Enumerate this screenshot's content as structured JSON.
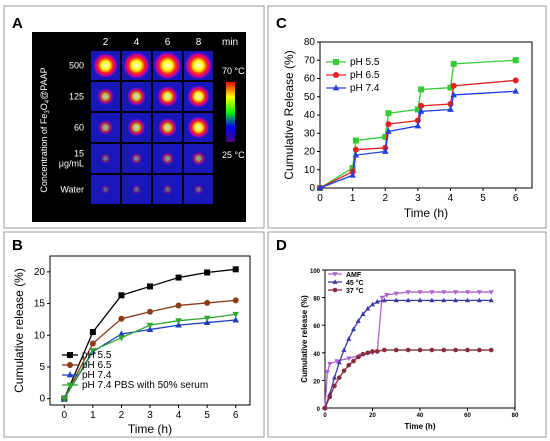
{
  "panels": {
    "A": {
      "label": "A",
      "time_labels": [
        "2",
        "4",
        "6",
        "8"
      ],
      "time_unit": "min",
      "row_labels": [
        "500",
        "125",
        "60",
        "15\nμg/mL",
        "Water"
      ],
      "ylabel": "Concentration of Fe3O4@PAAP",
      "ylabel_main": "Concentration of Fe",
      "ylabel_sub1": "3",
      "ylabel_mid": "O",
      "ylabel_sub2": "4",
      "ylabel_end": "@PAAP",
      "scale_max": "70 °C",
      "scale_min": "25 °C",
      "intensity": [
        [
          0.85,
          0.95,
          1.0,
          1.0
        ],
        [
          0.45,
          0.55,
          0.65,
          0.72
        ],
        [
          0.35,
          0.5,
          0.55,
          0.7
        ],
        [
          0.12,
          0.18,
          0.25,
          0.3
        ],
        [
          0.05,
          0.08,
          0.1,
          0.1
        ]
      ]
    }
  },
  "chart_data": [
    {
      "id": "B",
      "label": "B",
      "type": "line",
      "xlabel": "Time (h)",
      "ylabel": "Cumulative release (%)",
      "xlim": [
        -0.5,
        6.5
      ],
      "ylim": [
        -1,
        22.5
      ],
      "xticks": [
        0,
        1,
        2,
        3,
        4,
        5,
        6
      ],
      "yticks": [
        0,
        5,
        10,
        15,
        20
      ],
      "legend_position": "bottom-left",
      "series": [
        {
          "name": "pH 5.5",
          "color": "#000000",
          "marker": "square",
          "x": [
            0,
            1,
            2,
            3,
            4,
            5,
            6
          ],
          "y": [
            0,
            10.5,
            16.3,
            17.7,
            19.1,
            19.9,
            20.4
          ]
        },
        {
          "name": "pH 6.5",
          "color": "#8b3a1a",
          "marker": "circle",
          "x": [
            0,
            1,
            2,
            3,
            4,
            5,
            6
          ],
          "y": [
            0,
            8.7,
            12.6,
            13.7,
            14.7,
            15.1,
            15.5
          ]
        },
        {
          "name": "pH 7.4",
          "color": "#1f3fbf",
          "marker": "triangle-up",
          "x": [
            0,
            1,
            2,
            3,
            4,
            5,
            6
          ],
          "y": [
            0,
            7.4,
            10.2,
            10.9,
            11.6,
            12.0,
            12.4
          ]
        },
        {
          "name": "pH 7.4 PBS with 50% serum",
          "color": "#2ea82e",
          "marker": "triangle-down",
          "x": [
            0,
            1,
            2,
            3,
            4,
            5,
            6
          ],
          "y": [
            0,
            7.6,
            9.6,
            11.6,
            12.3,
            12.7,
            13.3
          ]
        }
      ]
    },
    {
      "id": "C",
      "label": "C",
      "type": "line",
      "xlabel": "Time (h)",
      "ylabel": "Cumulative Release (%)",
      "xlim": [
        0,
        6.5
      ],
      "ylim": [
        0,
        80
      ],
      "xticks": [
        0,
        1,
        2,
        3,
        4,
        5,
        6
      ],
      "yticks": [
        0,
        10,
        20,
        30,
        40,
        50,
        60,
        70,
        80
      ],
      "legend_position": "top-left",
      "series": [
        {
          "name": "pH 5.5",
          "color": "#33cc33",
          "marker": "square",
          "x": [
            0,
            1,
            1.1,
            2,
            2.1,
            3,
            3.1,
            4,
            4.1,
            6
          ],
          "y": [
            0,
            11,
            26,
            28,
            41,
            43,
            54,
            55,
            68,
            70
          ]
        },
        {
          "name": "pH 6.5",
          "color": "#e62020",
          "marker": "circle",
          "x": [
            0,
            1,
            1.1,
            2,
            2.1,
            3,
            3.1,
            4,
            4.1,
            6
          ],
          "y": [
            0,
            9,
            21,
            22,
            35,
            37,
            45,
            46,
            56,
            59
          ]
        },
        {
          "name": "pH 7.4",
          "color": "#2040e0",
          "marker": "triangle-up",
          "x": [
            0,
            1,
            1.1,
            2,
            2.1,
            3,
            3.1,
            4,
            4.1,
            6
          ],
          "y": [
            0,
            7,
            18,
            20,
            31,
            34,
            42,
            43,
            51,
            53
          ]
        }
      ]
    },
    {
      "id": "D",
      "label": "D",
      "type": "line",
      "xlabel": "Time (h)",
      "ylabel": "Cumulative release (%)",
      "xlim": [
        0,
        80
      ],
      "ylim": [
        0,
        100
      ],
      "xticks": [
        0,
        20,
        40,
        60,
        80
      ],
      "yticks": [
        0,
        20,
        40,
        60,
        80,
        100
      ],
      "legend_position": "top-left",
      "series": [
        {
          "name": "AMF",
          "color": "#b060d0",
          "marker": "triangle-down",
          "x": [
            0,
            1,
            2,
            5,
            10,
            15,
            20,
            22,
            24,
            26,
            30,
            35,
            40,
            45,
            50,
            55,
            60,
            65,
            70
          ],
          "y": [
            0,
            26,
            32,
            34,
            36,
            38,
            40,
            41,
            80,
            82,
            83,
            84,
            84,
            84,
            84,
            84,
            84,
            84,
            84
          ]
        },
        {
          "name": "45 °C",
          "color": "#3a3aa8",
          "marker": "triangle-up",
          "x": [
            0,
            2,
            4,
            6,
            8,
            10,
            12,
            14,
            16,
            18,
            20,
            22,
            25,
            30,
            35,
            40,
            45,
            50,
            55,
            60,
            65,
            70
          ],
          "y": [
            0,
            10,
            22,
            33,
            42,
            50,
            57,
            63,
            68,
            72,
            75,
            77,
            78,
            78,
            78,
            78,
            78,
            78,
            78,
            78,
            78,
            78
          ]
        },
        {
          "name": "37 °C",
          "color": "#8a2a3a",
          "marker": "circle",
          "x": [
            0,
            2,
            4,
            6,
            8,
            10,
            12,
            14,
            16,
            18,
            20,
            22,
            25,
            30,
            35,
            40,
            45,
            50,
            55,
            60,
            65,
            70
          ],
          "y": [
            0,
            8,
            16,
            22,
            27,
            31,
            34,
            37,
            39,
            40,
            41,
            41,
            42,
            42,
            42,
            42,
            42,
            42,
            42,
            42,
            42,
            42
          ]
        }
      ]
    }
  ]
}
